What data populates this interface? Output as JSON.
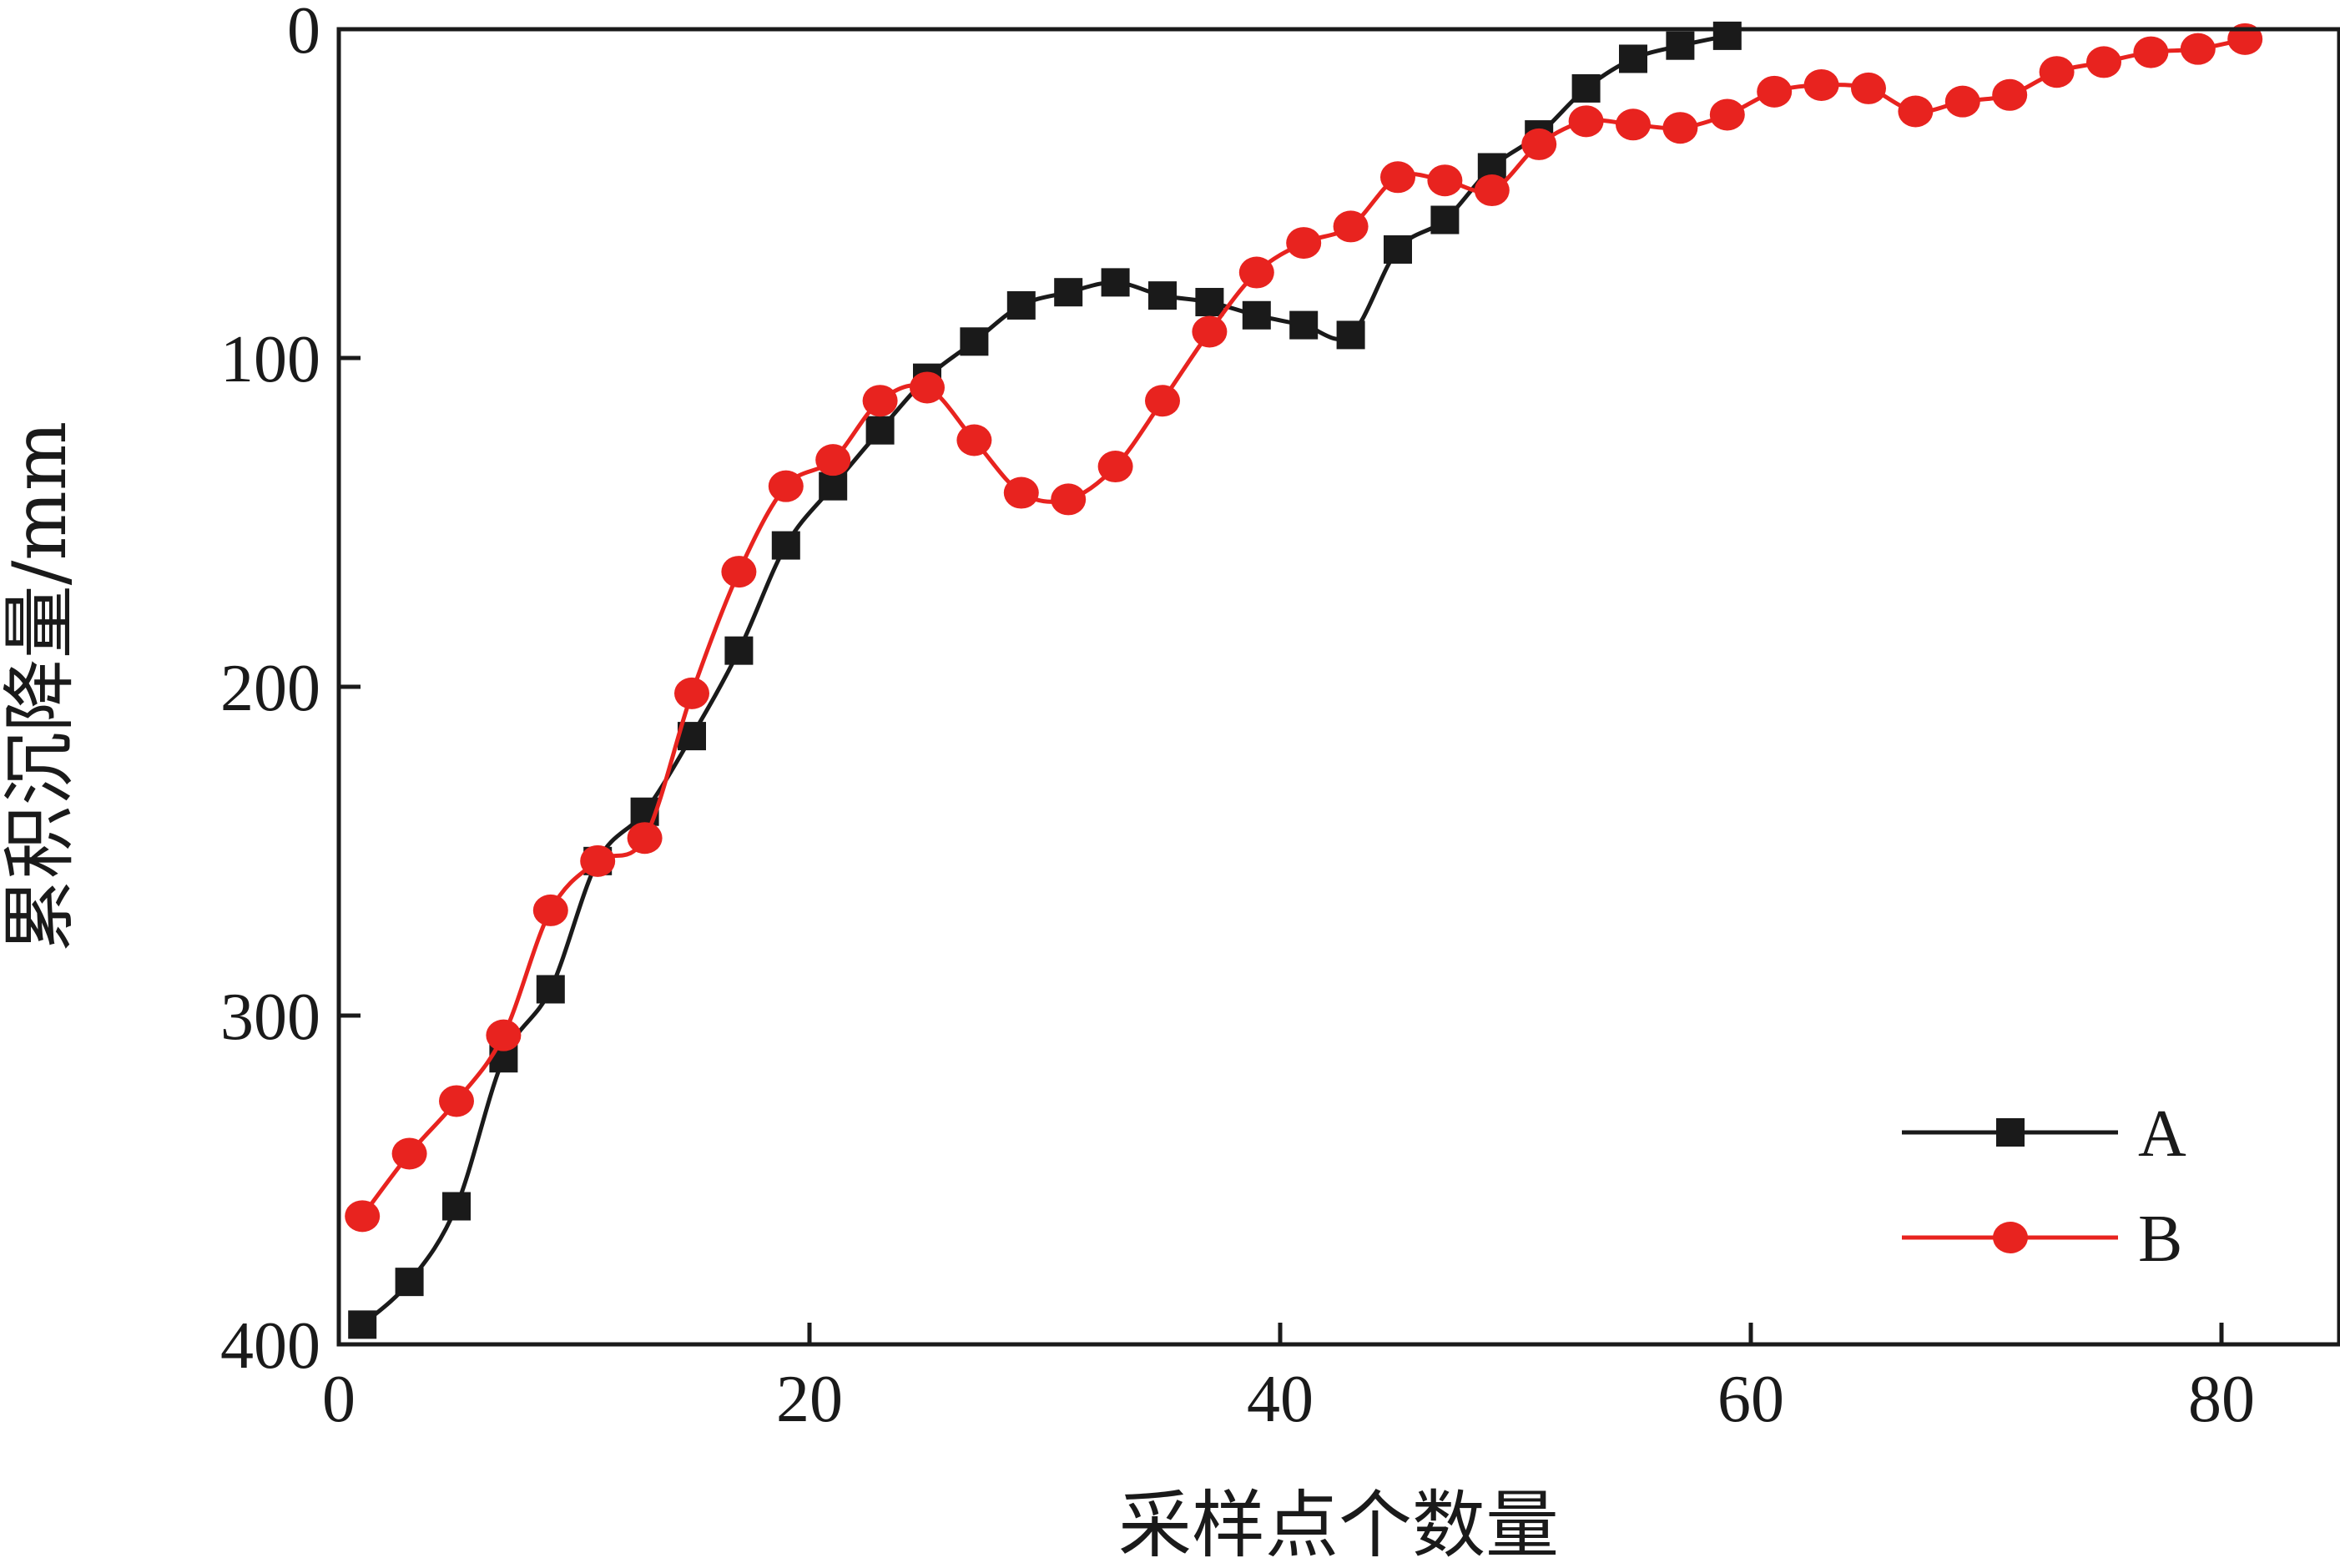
{
  "chart_data": {
    "type": "line",
    "xlabel": "采样点个数量",
    "ylabel": "累积沉降量/mm",
    "xlim": [
      0,
      85
    ],
    "ylim": [
      0,
      400
    ],
    "y_inverted": true,
    "grid": false,
    "legend_position": "bottom-right",
    "x_ticks": [
      0,
      20,
      40,
      60,
      80
    ],
    "y_ticks": [
      0,
      100,
      200,
      300,
      400
    ],
    "x_tick_labels": [
      "0",
      "20",
      "40",
      "60",
      "80"
    ],
    "y_tick_labels": [
      "0",
      "100",
      "200",
      "300",
      "400"
    ],
    "series": [
      {
        "name": "A",
        "color": "#1a1a1a",
        "marker": "square",
        "x": [
          1,
          3,
          5,
          7,
          9,
          11,
          13,
          15,
          17,
          19,
          21,
          23,
          25,
          27,
          29,
          31,
          33,
          35,
          37,
          39,
          41,
          43,
          45,
          47,
          49,
          51,
          53,
          55,
          57,
          59
        ],
        "y": [
          394,
          381,
          358,
          313,
          292,
          253,
          238,
          215,
          189,
          157,
          139,
          122,
          106,
          95,
          84,
          80,
          77,
          81,
          83,
          87,
          90,
          93,
          67,
          58,
          42,
          32,
          18,
          9,
          5,
          2
        ]
      },
      {
        "name": "B",
        "color": "#e8231f",
        "marker": "circle",
        "x": [
          1,
          3,
          5,
          7,
          9,
          11,
          13,
          15,
          17,
          19,
          21,
          23,
          25,
          27,
          29,
          31,
          33,
          35,
          37,
          39,
          41,
          43,
          45,
          47,
          49,
          51,
          53,
          55,
          57,
          59,
          61,
          63,
          65,
          67,
          69,
          71,
          73,
          75,
          77,
          79,
          81
        ],
        "y": [
          361,
          342,
          326,
          306,
          268,
          253,
          246,
          202,
          165,
          139,
          131,
          113,
          109,
          125,
          141,
          143,
          133,
          113,
          92,
          74,
          65,
          60,
          45,
          46,
          49,
          35,
          28,
          29,
          30,
          26,
          19,
          17,
          18,
          25,
          22,
          20,
          13,
          10,
          7,
          6,
          3
        ]
      }
    ]
  }
}
